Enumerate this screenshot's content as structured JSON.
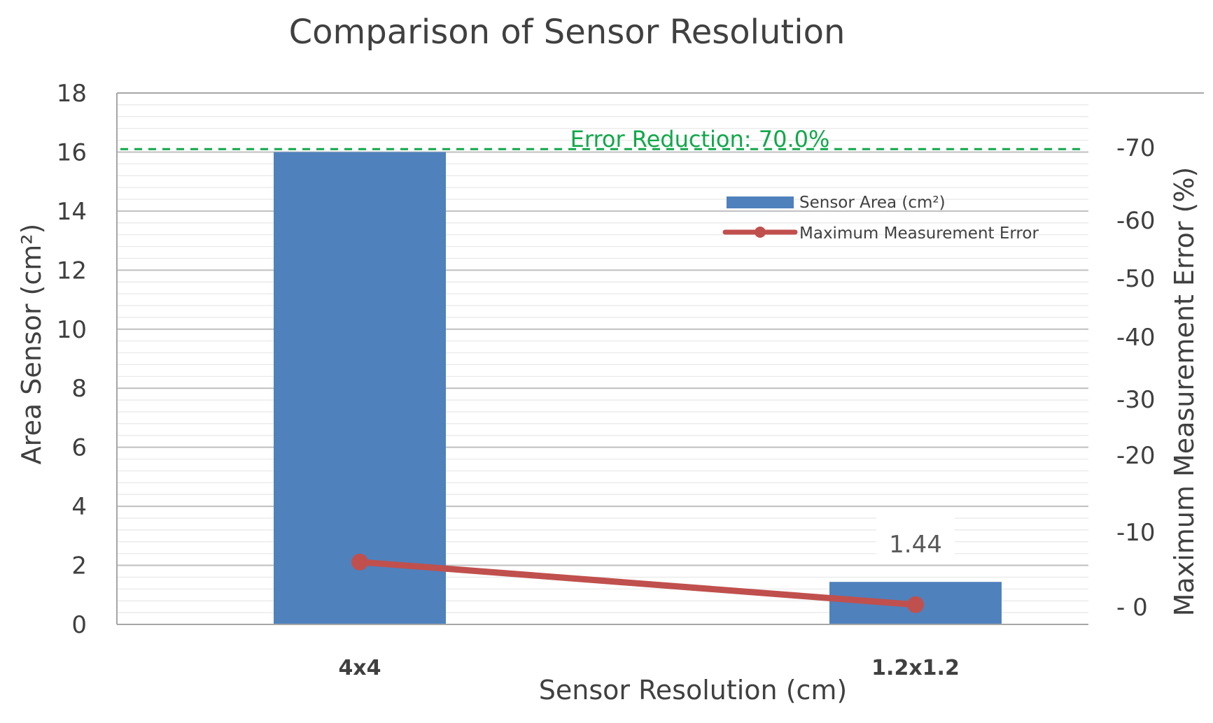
{
  "chart_data": {
    "type": "bar",
    "title": "Comparison of Sensor Resolution",
    "xlabel": "Sensor Resolution (cm)",
    "ylabel": "Area Sensor (cm²)",
    "y2label": "Maximum Measurement Error (%)",
    "categories": [
      "4x4",
      "1.2x1.2"
    ],
    "ylim": [
      0,
      18
    ],
    "yticks": [
      0,
      2,
      4,
      6,
      8,
      10,
      12,
      14,
      16,
      18
    ],
    "y2ticks": [
      {
        "label": "- 0",
        "value": 0
      },
      {
        "label": "-10",
        "value": -10
      },
      {
        "label": "-20",
        "value": -20
      },
      {
        "label": "-30",
        "value": -30
      },
      {
        "label": "-40",
        "value": -40
      },
      {
        "label": "-50",
        "value": -50
      },
      {
        "label": "-60",
        "value": -60
      },
      {
        "label": "-70",
        "value": -70
      }
    ],
    "series": [
      {
        "name": "Sensor Area (cm²)",
        "type": "bar",
        "axis": "left",
        "color": "#4f81bd",
        "values": [
          16,
          1.44
        ]
      },
      {
        "name": "Maximum Measurement Error",
        "type": "line",
        "axis": "right",
        "color": "#c0504d",
        "values": [
          -6.0,
          -0.3
        ]
      }
    ],
    "data_labels": [
      {
        "category": "1.2x1.2",
        "text": "1.44"
      }
    ],
    "reference_line": {
      "value": 16.1,
      "axis": "left",
      "style": "dashed",
      "color": "#11a84a",
      "label": "Error Reduction: 70.0%"
    },
    "grid": true,
    "legend_position": "upper-right inside plot"
  }
}
